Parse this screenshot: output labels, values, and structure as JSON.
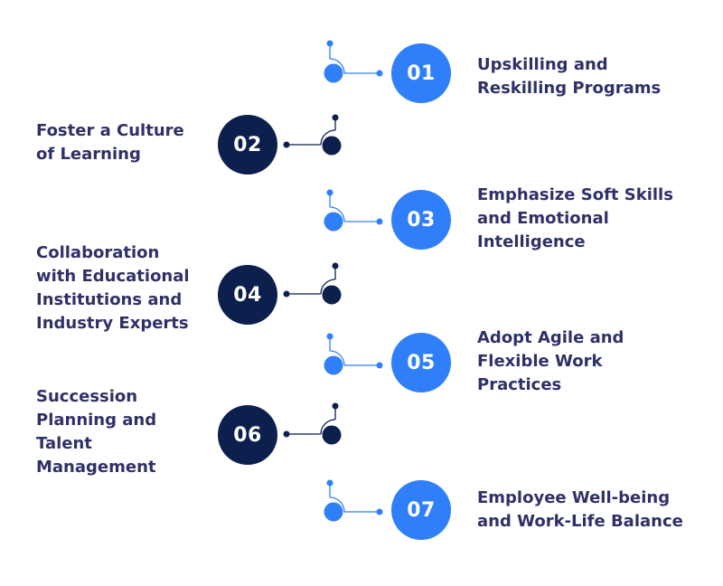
{
  "colors": {
    "odd_accent": "#2f7ffb",
    "even_accent": "#0c1f4d",
    "text": "#2e3168"
  },
  "steps": [
    {
      "number": "01",
      "label": "Upskilling and\nReskilling Programs"
    },
    {
      "number": "02",
      "label": "Foster a Culture\nof Learning"
    },
    {
      "number": "03",
      "label": "Emphasize Soft Skills\nand Emotional\nIntelligence"
    },
    {
      "number": "04",
      "label": "Collaboration\nwith Educational\nInstitutions and\nIndustry Experts"
    },
    {
      "number": "05",
      "label": "Adopt Agile and\nFlexible Work\nPractices"
    },
    {
      "number": "06",
      "label": "Succession\nPlanning and\nTalent\nManagement"
    },
    {
      "number": "07",
      "label": "Employee Well-being\nand Work-Life Balance"
    }
  ]
}
